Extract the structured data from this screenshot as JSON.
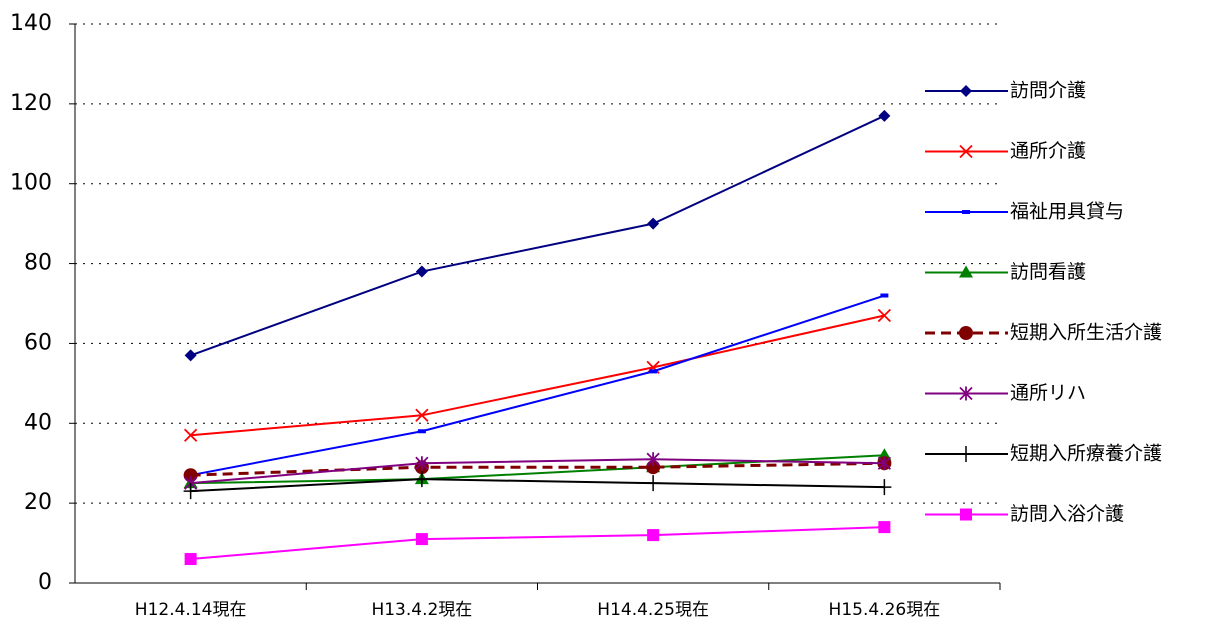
{
  "chart_data": {
    "type": "line",
    "categories": [
      "H12.4.14現在",
      "H13.4.2現在",
      "H14.4.25現在",
      "H15.4.26現在"
    ],
    "ylim": [
      0,
      140
    ],
    "yticks": [
      0,
      20,
      40,
      60,
      80,
      100,
      120,
      140
    ],
    "grid": true,
    "legend": "right",
    "series": [
      {
        "name": "訪問介護",
        "color": "#000080",
        "marker": "diamond",
        "values": [
          57,
          78,
          90,
          117
        ]
      },
      {
        "name": "通所介護",
        "color": "#ff0000",
        "marker": "x",
        "values": [
          37,
          42,
          54,
          67
        ]
      },
      {
        "name": "福祉用具貸与",
        "color": "#0000ff",
        "marker": "dash",
        "values": [
          27,
          38,
          53,
          72
        ]
      },
      {
        "name": "訪問看護",
        "color": "#008000",
        "marker": "triangle",
        "values": [
          25,
          26,
          29,
          32
        ]
      },
      {
        "name": "短期入所生活介護",
        "color": "#800000",
        "marker": "circle",
        "dashed": true,
        "values": [
          27,
          29,
          29,
          30
        ]
      },
      {
        "name": "通所リハ",
        "color": "#800080",
        "marker": "star",
        "values": [
          25,
          30,
          31,
          30
        ]
      },
      {
        "name": "短期入所療養介護",
        "color": "#000000",
        "marker": "plus",
        "values": [
          23,
          26,
          25,
          24
        ]
      },
      {
        "name": "訪問入浴介護",
        "color": "#ff00ff",
        "marker": "square",
        "values": [
          6,
          11,
          12,
          14
        ]
      }
    ]
  }
}
